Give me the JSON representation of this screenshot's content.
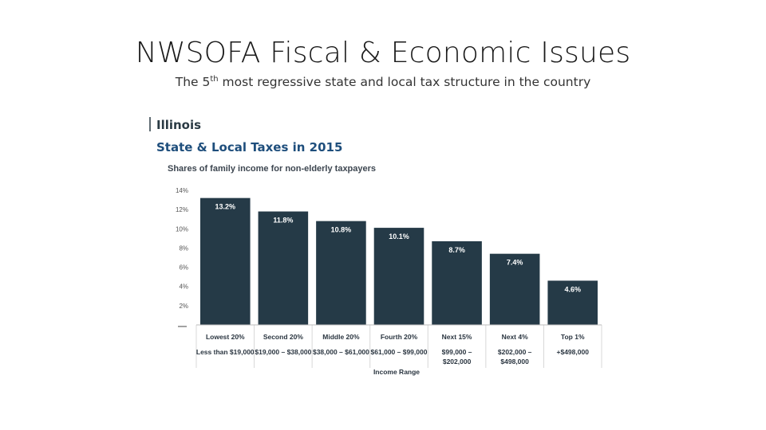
{
  "slide": {
    "title": "NWSOFA Fiscal & Economic Issues",
    "subtitle_pre": "The 5",
    "subtitle_sup": "th",
    "subtitle_post": " most regressive state and local tax structure in the country"
  },
  "chart_data": {
    "type": "bar",
    "state": "Illinois",
    "title": "State & Local Taxes in 2015",
    "subtitle": "Shares of family income for non-elderly taxpayers",
    "categories": [
      "Lowest 20%",
      "Second 20%",
      "Middle 20%",
      "Fourth 20%",
      "Next 15%",
      "Next 4%",
      "Top 1%"
    ],
    "income_ranges": [
      [
        "Less than $19,000"
      ],
      [
        "$19,000 – $38,000"
      ],
      [
        "$38,000 – $61,000"
      ],
      [
        "$61,000 – $99,000"
      ],
      [
        "$99,000 –",
        "$202,000"
      ],
      [
        "$202,000 –",
        "$498,000"
      ],
      [
        "+$498,000"
      ]
    ],
    "values": [
      13.2,
      11.8,
      10.8,
      10.1,
      8.7,
      7.4,
      4.6
    ],
    "value_labels": [
      "13.2%",
      "11.8%",
      "10.8%",
      "10.1%",
      "8.7%",
      "7.4%",
      "4.6%"
    ],
    "yticks": [
      2,
      4,
      6,
      8,
      10,
      12,
      14
    ],
    "ytick_labels": [
      "2%",
      "4%",
      "6%",
      "8%",
      "10%",
      "12%",
      "14%"
    ],
    "ylim": [
      0,
      14
    ],
    "xlabel": "Income Range",
    "colors": {
      "bar": "#253a47",
      "title": "#1e4e7c",
      "grid": "#d8d8d8"
    }
  }
}
